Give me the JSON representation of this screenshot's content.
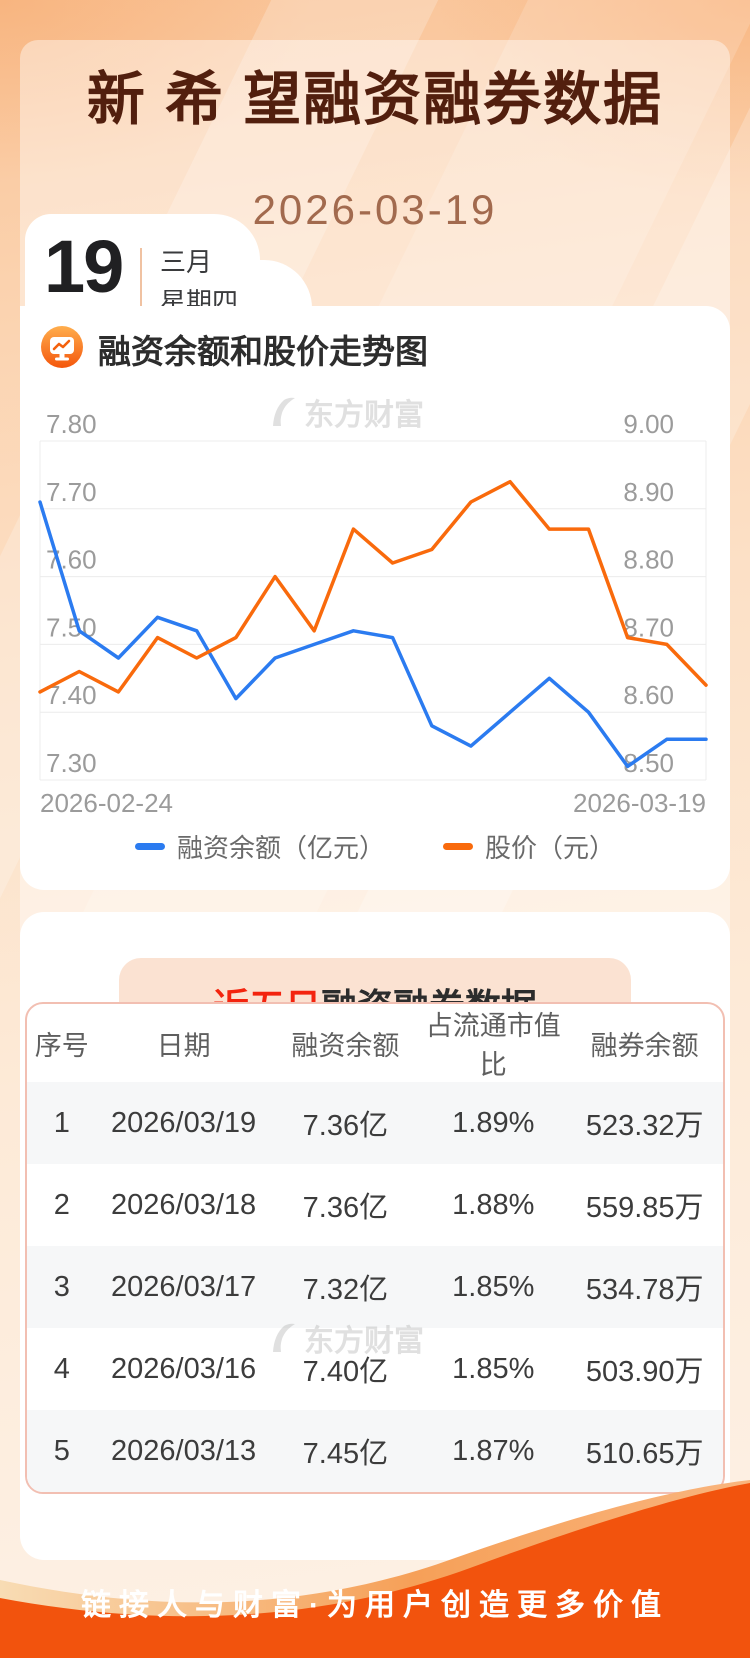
{
  "page": {
    "title": "新 希 望融资融券数据",
    "date": "2026-03-19",
    "calendar": {
      "day": "19",
      "month": "三月",
      "weekday": "星期四"
    },
    "watermark": "东方财富",
    "footer": "链接人与财富·为用户创造更多价值"
  },
  "colors": {
    "accent_orange": "#f2530d",
    "line_blue": "#2b7bf0",
    "line_orange": "#f96a0c",
    "title_brown": "#521f0e",
    "highlight_red": "#f3240f",
    "grid_gray": "#ececec",
    "axis_label_gray": "#9b9b9b"
  },
  "chart_data": {
    "type": "line",
    "title": "融资余额和股价走势图",
    "x": [
      "2026-02-24",
      "2026-02-25",
      "2026-02-26",
      "2026-02-27",
      "2026-03-02",
      "2026-03-03",
      "2026-03-04",
      "2026-03-05",
      "2026-03-06",
      "2026-03-09",
      "2026-03-10",
      "2026-03-11",
      "2026-03-12",
      "2026-03-13",
      "2026-03-16",
      "2026-03-17",
      "2026-03-18",
      "2026-03-19"
    ],
    "x_labels_shown": [
      "2026-02-24",
      "2026-03-19"
    ],
    "series": [
      {
        "name": "融资余额（亿元）",
        "axis": "left",
        "color": "#2b7bf0",
        "values": [
          7.71,
          7.52,
          7.48,
          7.54,
          7.52,
          7.42,
          7.48,
          7.5,
          7.52,
          7.51,
          7.38,
          7.35,
          7.4,
          7.45,
          7.4,
          7.32,
          7.36,
          7.36
        ]
      },
      {
        "name": "股价（元）",
        "axis": "right",
        "color": "#f96a0c",
        "values": [
          8.63,
          8.66,
          8.63,
          8.71,
          8.68,
          8.71,
          8.8,
          8.72,
          8.87,
          8.82,
          8.84,
          8.91,
          8.94,
          8.87,
          8.87,
          8.71,
          8.7,
          8.64
        ]
      }
    ],
    "left_axis": {
      "min": 7.3,
      "max": 7.8,
      "ticks": [
        "7.80",
        "7.70",
        "7.60",
        "7.50",
        "7.40",
        "7.30"
      ]
    },
    "right_axis": {
      "min": 8.5,
      "max": 9.0,
      "ticks": [
        "9.00",
        "8.90",
        "8.80",
        "8.70",
        "8.60",
        "8.50"
      ]
    },
    "grid": true,
    "legend_position": "bottom"
  },
  "table_section": {
    "title_highlight": "近五日",
    "title_rest": "融资融券数据",
    "columns": [
      "序号",
      "日期",
      "融资余额",
      "占流通市值比",
      "融券余额"
    ],
    "rows": [
      [
        "1",
        "2026/03/19",
        "7.36亿",
        "1.89%",
        "523.32万"
      ],
      [
        "2",
        "2026/03/18",
        "7.36亿",
        "1.88%",
        "559.85万"
      ],
      [
        "3",
        "2026/03/17",
        "7.32亿",
        "1.85%",
        "534.78万"
      ],
      [
        "4",
        "2026/03/16",
        "7.40亿",
        "1.85%",
        "503.90万"
      ],
      [
        "5",
        "2026/03/13",
        "7.45亿",
        "1.87%",
        "510.65万"
      ]
    ]
  }
}
